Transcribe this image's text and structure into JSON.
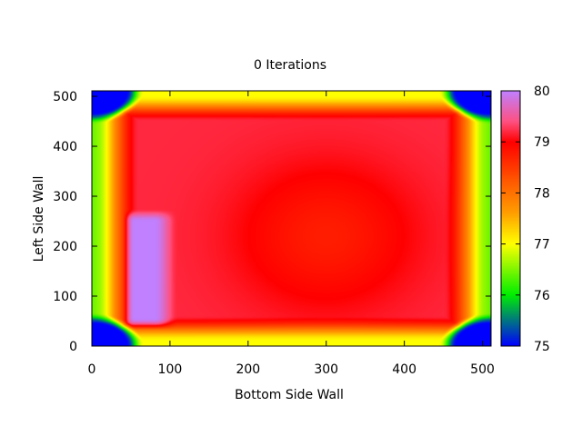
{
  "chart_data": {
    "type": "heatmap",
    "title": "0 Iterations",
    "xlabel": "Bottom Side Wall",
    "ylabel": "Left Side Wall",
    "xlim": [
      0,
      511
    ],
    "ylim": [
      0,
      511
    ],
    "xticks": [
      0,
      100,
      200,
      300,
      400,
      500
    ],
    "yticks": [
      0,
      100,
      200,
      300,
      400,
      500
    ],
    "colorbar": {
      "range": [
        75,
        80
      ],
      "ticks": [
        75,
        76,
        77,
        78,
        79,
        80
      ],
      "stops": [
        {
          "value": 75.0,
          "color": "#0000ff"
        },
        {
          "value": 76.0,
          "color": "#00ee00"
        },
        {
          "value": 77.0,
          "color": "#ffff00"
        },
        {
          "value": 77.6,
          "color": "#ffa000"
        },
        {
          "value": 79.0,
          "color": "#ff0000"
        },
        {
          "value": 79.4,
          "color": "#ff5080"
        },
        {
          "value": 80.0,
          "color": "#c080ff"
        }
      ]
    },
    "field_description": {
      "interior_value": 79.2,
      "center_value": 78.8,
      "edge_value": 77.0,
      "corner_value": 75.0,
      "hot_spot": {
        "x_range": [
          50,
          100
        ],
        "y_range": [
          40,
          270
        ],
        "value": 80.0
      }
    }
  }
}
